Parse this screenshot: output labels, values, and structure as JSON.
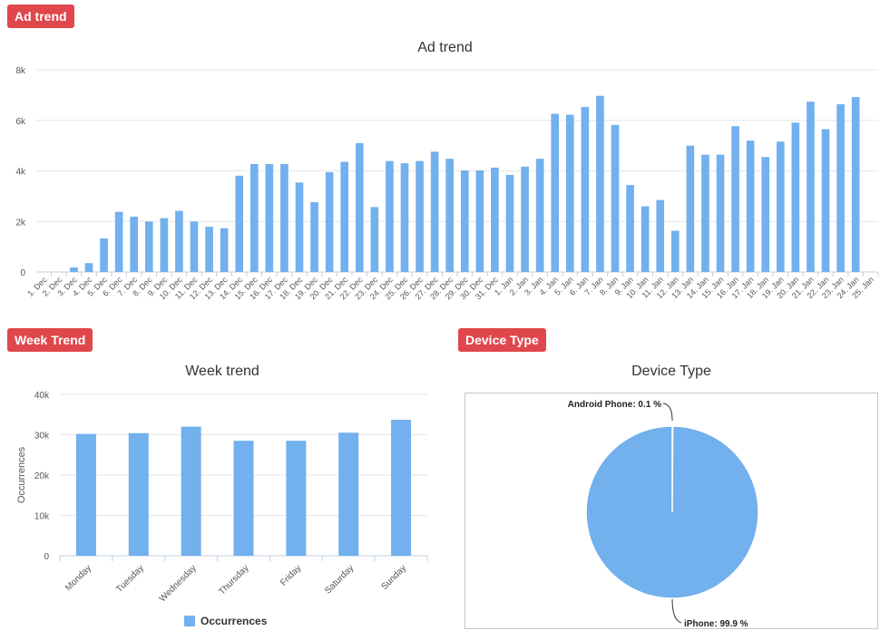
{
  "badges": {
    "ad_trend": "Ad trend",
    "week_trend": "Week Trend",
    "device_type": "Device Type"
  },
  "colors": {
    "bar": "#72b0ee",
    "grid": "#e6e6e6",
    "axis": "#c0d0e0",
    "badge": "#e0474c"
  },
  "chart_data": [
    {
      "id": "ad-trend",
      "type": "bar",
      "title": "Ad trend",
      "xlabel": "",
      "ylabel": "",
      "ylim": [
        0,
        8000
      ],
      "yticks": [
        0,
        2000,
        4000,
        6000,
        8000
      ],
      "ytick_labels": [
        "0",
        "2k",
        "4k",
        "6k",
        "8k"
      ],
      "grid": true,
      "categories": [
        "1. Dec",
        "2. Dec",
        "3. Dec",
        "4. Dec",
        "5. Dec",
        "6. Dec",
        "7. Dec",
        "8. Dec",
        "9. Dec",
        "10. Dec",
        "11. Dec",
        "12. Dec",
        "13. Dec",
        "14. Dec",
        "15. Dec",
        "16. Dec",
        "17. Dec",
        "18. Dec",
        "19. Dec",
        "20. Dec",
        "21. Dec",
        "22. Dec",
        "23. Dec",
        "24. Dec",
        "25. Dec",
        "26. Dec",
        "27. Dec",
        "28. Dec",
        "29. Dec",
        "30. Dec",
        "31. Dec",
        "1. Jan",
        "2. Jan",
        "3. Jan",
        "4. Jan",
        "5. Jan",
        "6. Jan",
        "7. Jan",
        "8. Jan",
        "9. Jan",
        "10. Jan",
        "11. Jan",
        "12. Jan",
        "13. Jan",
        "14. Jan",
        "15. Jan",
        "16. Jan",
        "17. Jan",
        "18. Jan",
        "19. Jan",
        "20. Jan",
        "21. Jan",
        "22. Jan",
        "23. Jan",
        "24. Jan",
        "25. Jan"
      ],
      "values": [
        0,
        0,
        180,
        350,
        1330,
        2380,
        2190,
        2000,
        2130,
        2420,
        2000,
        1790,
        1730,
        3810,
        4270,
        4270,
        4270,
        3540,
        2760,
        3950,
        4360,
        5100,
        2570,
        4390,
        4300,
        4390,
        4760,
        4480,
        4020,
        4020,
        4130,
        3840,
        4170,
        4480,
        6260,
        6220,
        6530,
        6970,
        5820,
        3440,
        2600,
        2850,
        1630,
        5000,
        4640,
        4640,
        5770,
        5200,
        4550,
        5160,
        5910,
        6740,
        5650,
        6640,
        6920,
        0
      ]
    },
    {
      "id": "week-trend",
      "type": "bar",
      "title": "Week trend",
      "xlabel": "",
      "ylabel": "Occurrences",
      "ylim": [
        0,
        40000
      ],
      "yticks": [
        0,
        10000,
        20000,
        30000,
        40000
      ],
      "ytick_labels": [
        "0",
        "10k",
        "20k",
        "30k",
        "40k"
      ],
      "grid": true,
      "legend": "bottom-center",
      "categories": [
        "Monday",
        "Tuesday",
        "Wednesday",
        "Thursday",
        "Friday",
        "Saturday",
        "Sunday"
      ],
      "series": [
        {
          "name": "Occurrences",
          "values": [
            30200,
            30400,
            32000,
            28500,
            28500,
            30500,
            33700
          ]
        }
      ]
    },
    {
      "id": "device-type",
      "type": "pie",
      "title": "Device Type",
      "slices": [
        {
          "label": "Android Phone: 0.1 %",
          "value": 0.1
        },
        {
          "label": "iPhone: 99.9 %",
          "value": 99.9
        }
      ]
    }
  ]
}
